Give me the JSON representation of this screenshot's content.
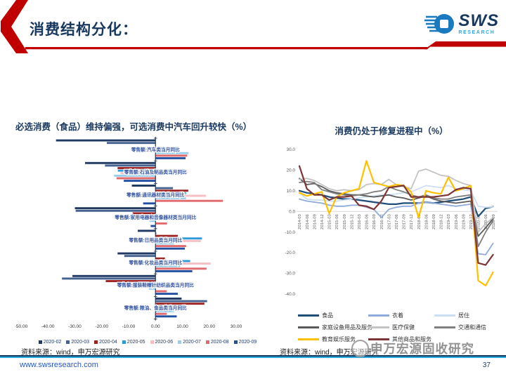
{
  "header": {
    "title": "消费结构分化：",
    "logo_text": "SWS",
    "logo_subtext": "RESEARCH"
  },
  "left_panel": {
    "source": "资料来源：wind，申万宏源研究"
  },
  "right_panel": {
    "source": "资料来源：wind，申万宏源研究"
  },
  "watermark": {
    "text": "申万宏源固收研究"
  },
  "footer": {
    "url": "www.swsresearch.com",
    "page": "37"
  },
  "chart_data": [
    {
      "type": "bar",
      "orientation": "horizontal",
      "title": "必选消费（食品）维持偏强，可选消费中汽车回升较快（%）",
      "xlim": [
        -50,
        30
      ],
      "x_ticks": [
        "-50.00",
        "-40.00",
        "-30.00",
        "-20.00",
        "-10.00",
        "0.00",
        "10.00",
        "20.00",
        "30.00"
      ],
      "legend_position": "bottom",
      "grid": false,
      "categories": [
        "零售额:汽车类当月同比",
        "零售额:石油及制品类当月同比",
        "零售额:通讯器材类当月同比",
        "零售额:家用电器和音像器材类当月同比",
        "零售额:日用品类当月同比",
        "零售额:化妆品类当月同比",
        "零售额:服装鞋帽针纺织品类当月同比",
        "零售额:粮油、食品类当月同比"
      ],
      "series": [
        {
          "name": "2020-02",
          "color": "#1F3864",
          "values": [
            -37.0,
            -26.2,
            -8.8,
            -30.0,
            -6.6,
            -14.1,
            -30.9,
            9.7
          ]
        },
        {
          "name": "2020-03",
          "color": "#44618F",
          "values": [
            -18.1,
            -18.8,
            6.5,
            -29.7,
            0.3,
            -11.6,
            -34.8,
            19.2
          ]
        },
        {
          "name": "2020-04",
          "color": "#9E2121",
          "values": [
            0.0,
            -14.1,
            12.2,
            -8.5,
            8.3,
            3.5,
            -18.5,
            18.2
          ]
        },
        {
          "name": "2020-05",
          "color": "#2E9AD8",
          "values": [
            3.5,
            -14.0,
            11.4,
            4.3,
            17.3,
            12.9,
            -0.6,
            11.4
          ]
        },
        {
          "name": "2020-06",
          "color": "#F5BFC4",
          "values": [
            -8.2,
            -13.0,
            18.8,
            9.8,
            16.9,
            20.5,
            -0.1,
            10.5
          ]
        },
        {
          "name": "2020-07",
          "color": "#96CEEC",
          "values": [
            12.3,
            -15.4,
            11.3,
            -2.2,
            6.9,
            9.2,
            -2.5,
            6.9
          ]
        },
        {
          "name": "2020-08",
          "color": "#E2696B",
          "values": [
            11.8,
            -14.5,
            25.1,
            4.3,
            11.4,
            19.0,
            4.2,
            4.2
          ]
        },
        {
          "name": "2020-09",
          "color": "#2150A1",
          "values": [
            11.2,
            -11.8,
            -4.6,
            -1.8,
            10.9,
            13.7,
            8.3,
            7.9
          ]
        }
      ]
    },
    {
      "type": "line",
      "title": "消费仍处于修复进程中（%）",
      "ylim": [
        -40,
        30
      ],
      "y_ticks": [
        "30.0",
        "20.0",
        "10.0",
        "0.0",
        "-10.0",
        "-20.0",
        "-30.0",
        "-40.0"
      ],
      "legend_position": "bottom",
      "grid": false,
      "x": [
        "2014-03",
        "2014-06",
        "2014-09",
        "2014-12",
        "2015-03",
        "2015-06",
        "2015-09",
        "2015-12",
        "2016-03",
        "2016-06",
        "2016-09",
        "2016-12",
        "2017-03",
        "2017-06",
        "2017-09",
        "2017-12",
        "2018-03",
        "2018-06",
        "2018-09",
        "2018-12",
        "2019-03",
        "2019-06",
        "2019-09",
        "2019-12",
        "2020-03",
        "2020-06",
        "2020-09"
      ],
      "series": [
        {
          "name": "食品",
          "color": "#1F4E79",
          "width": 2.2,
          "values": [
            10,
            9,
            8.5,
            8,
            7,
            6.5,
            6,
            6,
            5.5,
            5,
            4.5,
            4,
            3.5,
            3.5,
            4,
            4,
            4,
            4.5,
            4,
            4.5,
            5,
            5.5,
            6,
            7,
            -2.5,
            1.5,
            2.3
          ]
        },
        {
          "name": "衣着",
          "color": "#8FAADC",
          "width": 1.8,
          "values": [
            6,
            5,
            4.5,
            4,
            3,
            2.5,
            2.5,
            3,
            3,
            2,
            1,
            -3,
            1,
            2,
            2.5,
            2.5,
            4,
            4.5,
            4,
            3.5,
            3,
            2.5,
            3,
            3.5,
            -20.5,
            -21,
            -15.5
          ]
        },
        {
          "name": "居住",
          "color": "#CCDEF2",
          "width": 1.8,
          "values": [
            9,
            6,
            5.5,
            5.5,
            5,
            5,
            5.5,
            6,
            6.5,
            7,
            7.5,
            8,
            8,
            8.5,
            9,
            9.5,
            11,
            12.5,
            12,
            11.5,
            12.5,
            11,
            10.5,
            10,
            2.5,
            2,
            2.2
          ]
        },
        {
          "name": "家庭设备用品及服务",
          "color": "#595959",
          "width": 1.8,
          "values": [
            16,
            13,
            13.5,
            12,
            10,
            9,
            8.5,
            8,
            8,
            7.5,
            7,
            7.5,
            8,
            7,
            6.5,
            5.5,
            6.5,
            7.5,
            6,
            5,
            4.5,
            4,
            4.5,
            5,
            -12,
            -8,
            -3.5
          ]
        },
        {
          "name": "医疗保健",
          "color": "#C3C3C3",
          "width": 1.8,
          "values": [
            15.5,
            16,
            15,
            13,
            11,
            10,
            10.5,
            10,
            10.5,
            13,
            13.5,
            13,
            15.5,
            13,
            12,
            11,
            19.5,
            20.5,
            19,
            17.5,
            17,
            15,
            13.5,
            12.5,
            -10,
            -6,
            -3
          ]
        },
        {
          "name": "交通和通信",
          "color": "#808080",
          "width": 1.8,
          "values": [
            14,
            14.5,
            14,
            10.5,
            9.5,
            8.5,
            8,
            7.5,
            8,
            8.5,
            9.5,
            10,
            12,
            10.5,
            9.5,
            8,
            7,
            8,
            6.5,
            6,
            6,
            7,
            7.5,
            8,
            -17,
            -10,
            -4.5
          ]
        },
        {
          "name": "教育娱乐服务",
          "color": "#FFC000",
          "width": 2.2,
          "values": [
            9,
            7.5,
            8.5,
            9.5,
            -1,
            7,
            9,
            10,
            11,
            24.5,
            14,
            13,
            12,
            13,
            12.5,
            9.5,
            -3,
            10,
            9,
            8.5,
            16.5,
            10,
            11,
            12.5,
            -33.5,
            -36,
            -29.5
          ]
        },
        {
          "name": "其他商品和服务",
          "color": "#7E3535",
          "width": 2.2,
          "values": [
            22,
            11,
            8,
            8,
            5.5,
            7,
            7,
            7.5,
            3,
            2.5,
            1,
            5,
            11.5,
            12,
            12.5,
            7,
            7,
            7,
            7,
            7.5,
            8,
            10.5,
            11.5,
            11,
            -25,
            -26,
            -21
          ]
        }
      ]
    }
  ]
}
